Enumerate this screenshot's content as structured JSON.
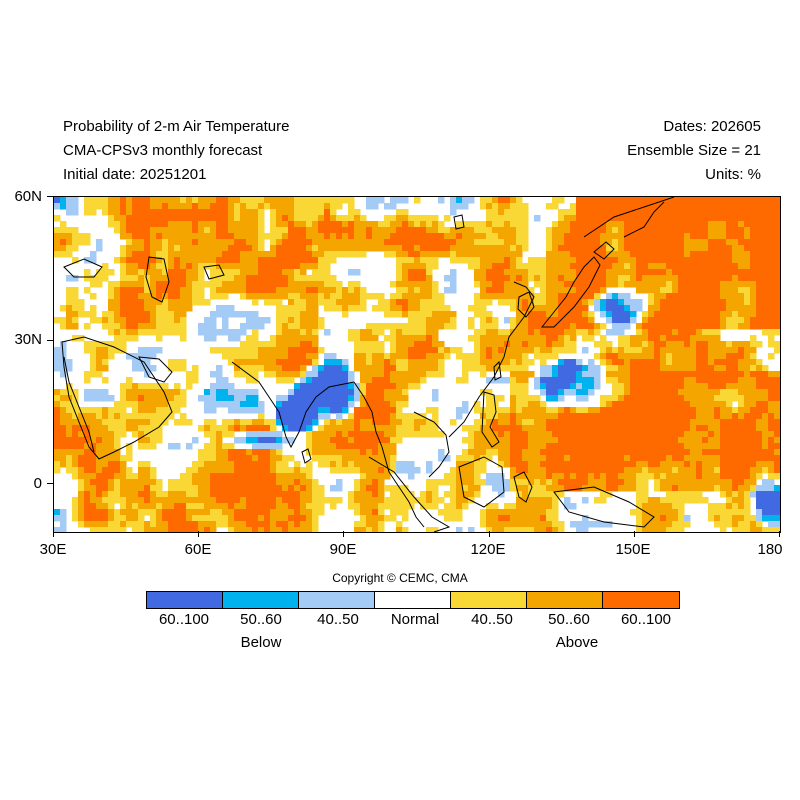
{
  "header": {
    "title_line1": "Probability of 2-m Air Temperature",
    "title_line2": "CMA-CPSv3 monthly forecast",
    "title_line3": "Initial date: 20251201",
    "dates": "Dates: 202605",
    "ensemble": "Ensemble Size = 21",
    "units": "Units: %"
  },
  "map": {
    "lat_labels": [
      "60N",
      "30N",
      "0"
    ],
    "lon_labels": [
      "30E",
      "60E",
      "90E",
      "120E",
      "150E",
      "180"
    ],
    "lon_range": [
      30,
      180
    ],
    "lat_range": [
      -10,
      60
    ]
  },
  "copyright": "Copyright © CEMC, CMA",
  "legend": {
    "categories": [
      {
        "label": "60..100",
        "color": "#4169e1",
        "group": "below"
      },
      {
        "label": "50..60",
        "color": "#00b2ee",
        "group": "below"
      },
      {
        "label": "40..50",
        "color": "#a4cbf5",
        "group": "below"
      },
      {
        "label": "Normal",
        "color": "#ffffff",
        "group": "normal"
      },
      {
        "label": "40..50",
        "color": "#f9d835",
        "group": "above"
      },
      {
        "label": "50..60",
        "color": "#f5a500",
        "group": "above"
      },
      {
        "label": "60..100",
        "color": "#ff6a00",
        "group": "above"
      }
    ],
    "below_label": "Below",
    "above_label": "Above"
  }
}
